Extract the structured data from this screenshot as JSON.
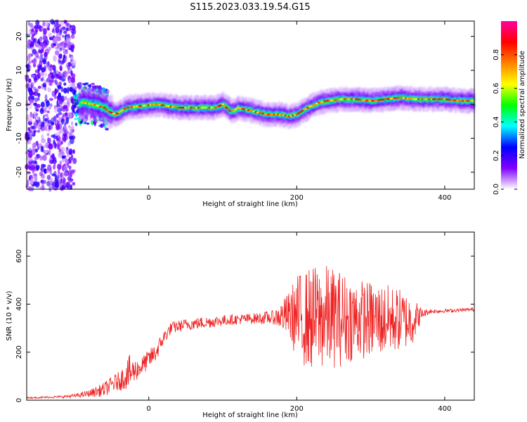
{
  "figure": {
    "title": "S115.2023.033.19.54.G15"
  },
  "chart_data": [
    {
      "type": "heatmap",
      "xlabel": "Height of straight line (km)",
      "ylabel": "Frequency (Hz)",
      "xlim": [
        -165,
        440
      ],
      "ylim": [
        -25,
        24.5
      ],
      "x_ticks": [
        0,
        200,
        400
      ],
      "y_ticks": [
        -20,
        -10,
        0,
        10,
        20
      ],
      "colorbar": {
        "label": "Normalized spectral amplitude",
        "range": [
          0,
          1
        ],
        "ticks": [
          "0.0",
          "0.2",
          "0.4",
          "0.6",
          "0.8"
        ],
        "colors": [
          "#ffffff",
          "#8000ff",
          "#0000ff",
          "#00ffff",
          "#00ff00",
          "#ffff00",
          "#ff8000",
          "#ff0000",
          "#ff00a0"
        ]
      },
      "ridge": {
        "x": [
          -110,
          -90,
          -75,
          -60,
          -55,
          -45,
          -30,
          -10,
          10,
          40,
          70,
          90,
          100,
          105,
          110,
          115,
          120,
          130,
          140,
          160,
          175,
          190,
          200,
          210,
          220,
          230,
          240,
          260,
          280,
          300,
          320,
          340,
          360,
          380,
          400,
          420,
          440
        ],
        "y": [
          -1,
          0.5,
          0,
          -1,
          -2,
          -3,
          -1,
          -0.5,
          0,
          -1,
          -1,
          -1,
          0,
          -1,
          -2,
          -2,
          -1,
          -1.5,
          -2,
          -3,
          -3,
          -3.5,
          -3,
          -1.5,
          -0.5,
          0.5,
          1,
          1.5,
          1.5,
          1,
          1.5,
          2,
          1.5,
          1.5,
          1.5,
          1,
          1
        ]
      }
    },
    {
      "type": "line",
      "xlabel": "Height of straight line (km)",
      "ylabel": "SNR (10 * v/v)",
      "xlim": [
        -165,
        440
      ],
      "ylim": [
        0,
        700
      ],
      "x_ticks": [
        0,
        200,
        400
      ],
      "y_ticks": [
        0,
        200,
        400,
        600
      ],
      "color": "#ee2222",
      "envelope": {
        "x": [
          -165,
          -140,
          -120,
          -100,
          -80,
          -60,
          -50,
          -40,
          -30,
          -25,
          -20,
          -10,
          0,
          10,
          20,
          30,
          50,
          80,
          110,
          140,
          170,
          190,
          200,
          210,
          220,
          240,
          260,
          280,
          300,
          320,
          340,
          355,
          370,
          380,
          400,
          420,
          440
        ],
        "mean": [
          10,
          12,
          14,
          18,
          28,
          45,
          65,
          80,
          105,
          115,
          120,
          140,
          170,
          200,
          260,
          300,
          315,
          325,
          335,
          340,
          345,
          355,
          345,
          340,
          340,
          345,
          340,
          340,
          335,
          335,
          335,
          330,
          360,
          370,
          372,
          375,
          378
        ],
        "spread": [
          3,
          4,
          5,
          8,
          15,
          30,
          35,
          40,
          60,
          80,
          50,
          40,
          40,
          40,
          30,
          25,
          25,
          25,
          22,
          22,
          30,
          100,
          180,
          200,
          220,
          220,
          200,
          170,
          160,
          150,
          130,
          110,
          20,
          10,
          8,
          8,
          8
        ]
      }
    }
  ]
}
